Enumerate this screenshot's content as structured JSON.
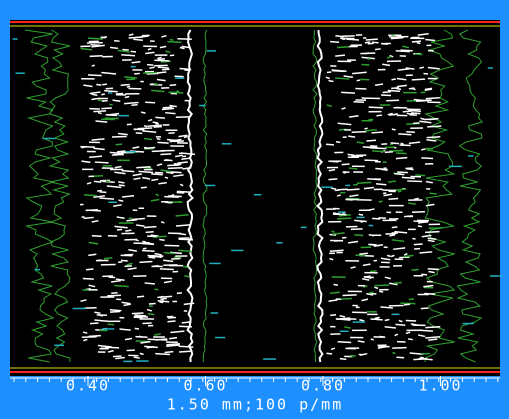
{
  "x_axis": {
    "tick_labels": [
      "0.40",
      "0.60",
      "0.80",
      "1.00"
    ],
    "caption": "1.50 mm;100 p/mm"
  }
}
